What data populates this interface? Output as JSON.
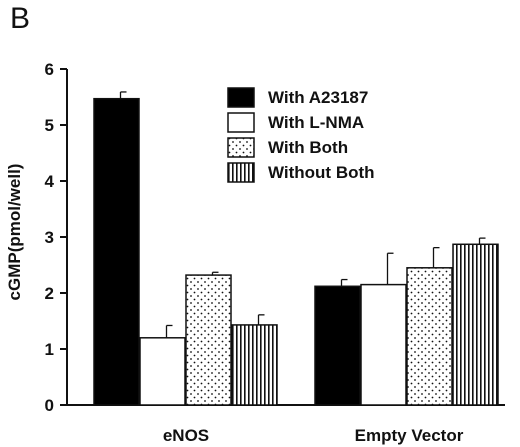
{
  "panel_label": "B",
  "chart_data": {
    "type": "bar",
    "title": "",
    "xlabel": "",
    "ylabel": "cGMP(pmol/well)",
    "ylim": [
      0,
      6
    ],
    "yticks": [
      "0",
      "1",
      "2",
      "3",
      "4",
      "5",
      "6"
    ],
    "categories": [
      "eNOS",
      "Empty  Vector"
    ],
    "series": [
      {
        "name": "With  A23187",
        "values": [
          5.47,
          2.12
        ],
        "errors": [
          0.12,
          0.12
        ],
        "fill": "#000000",
        "pattern": "solid"
      },
      {
        "name": "With  L-NMA",
        "values": [
          1.2,
          2.15
        ],
        "errors": [
          0.22,
          0.56
        ],
        "fill": "#ffffff",
        "pattern": "none"
      },
      {
        "name": "With  Both",
        "values": [
          2.32,
          2.45
        ],
        "errors": [
          0.05,
          0.36
        ],
        "fill": "#ffffff",
        "pattern": "dots"
      },
      {
        "name": "Without  Both",
        "values": [
          1.43,
          2.87
        ],
        "errors": [
          0.18,
          0.11
        ],
        "fill": "#ffffff",
        "pattern": "vertical-stripes"
      }
    ],
    "legend": {
      "position": "top-right"
    },
    "grid": false
  }
}
